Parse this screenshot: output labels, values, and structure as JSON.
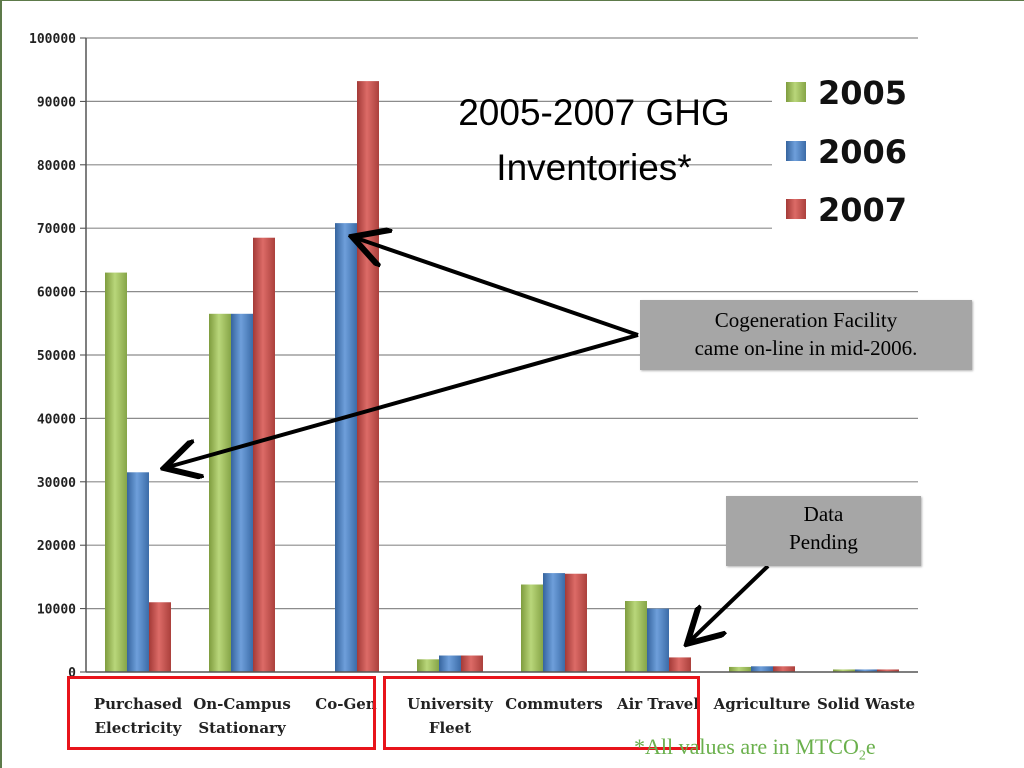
{
  "title_lines": [
    "2005-2007 GHG",
    "Inventories*"
  ],
  "notes": {
    "cogen": [
      "Cogeneration Facility",
      "came on-line in mid-2006."
    ],
    "pending": [
      "Data",
      "Pending"
    ]
  },
  "footnote": {
    "prefix": "*All values are in MTCO",
    "sub": "2",
    "suffix": "e"
  },
  "colors": {
    "2005": "#9bbb59",
    "2006": "#4f81bd",
    "2007": "#c0504d",
    "group_box": "#e8141b",
    "footnote": "#6ab04c"
  },
  "chart_data": {
    "type": "bar",
    "title": "2005-2007 GHG Inventories*",
    "categories": [
      [
        "Purchased",
        "Electricity"
      ],
      [
        "On-Campus",
        "Stationary"
      ],
      [
        "Co-Gen"
      ],
      [
        "University",
        "Fleet"
      ],
      [
        "Commuters"
      ],
      [
        "Air Travel"
      ],
      [
        "Agriculture"
      ],
      [
        "Solid Waste"
      ]
    ],
    "series": [
      {
        "name": "2005",
        "values": [
          63000,
          56500,
          0,
          2000,
          13800,
          11200,
          800,
          400
        ]
      },
      {
        "name": "2006",
        "values": [
          31500,
          56500,
          70800,
          2600,
          15600,
          10000,
          900,
          400
        ]
      },
      {
        "name": "2007",
        "values": [
          11000,
          68500,
          93200,
          2600,
          15500,
          2300,
          900,
          400
        ]
      }
    ],
    "ylim": [
      0,
      100000
    ],
    "yticks": [
      0,
      10000,
      20000,
      30000,
      40000,
      50000,
      60000,
      70000,
      80000,
      90000,
      100000
    ],
    "grid": true,
    "legend": "top-right",
    "xlabel": "",
    "ylabel": ""
  }
}
